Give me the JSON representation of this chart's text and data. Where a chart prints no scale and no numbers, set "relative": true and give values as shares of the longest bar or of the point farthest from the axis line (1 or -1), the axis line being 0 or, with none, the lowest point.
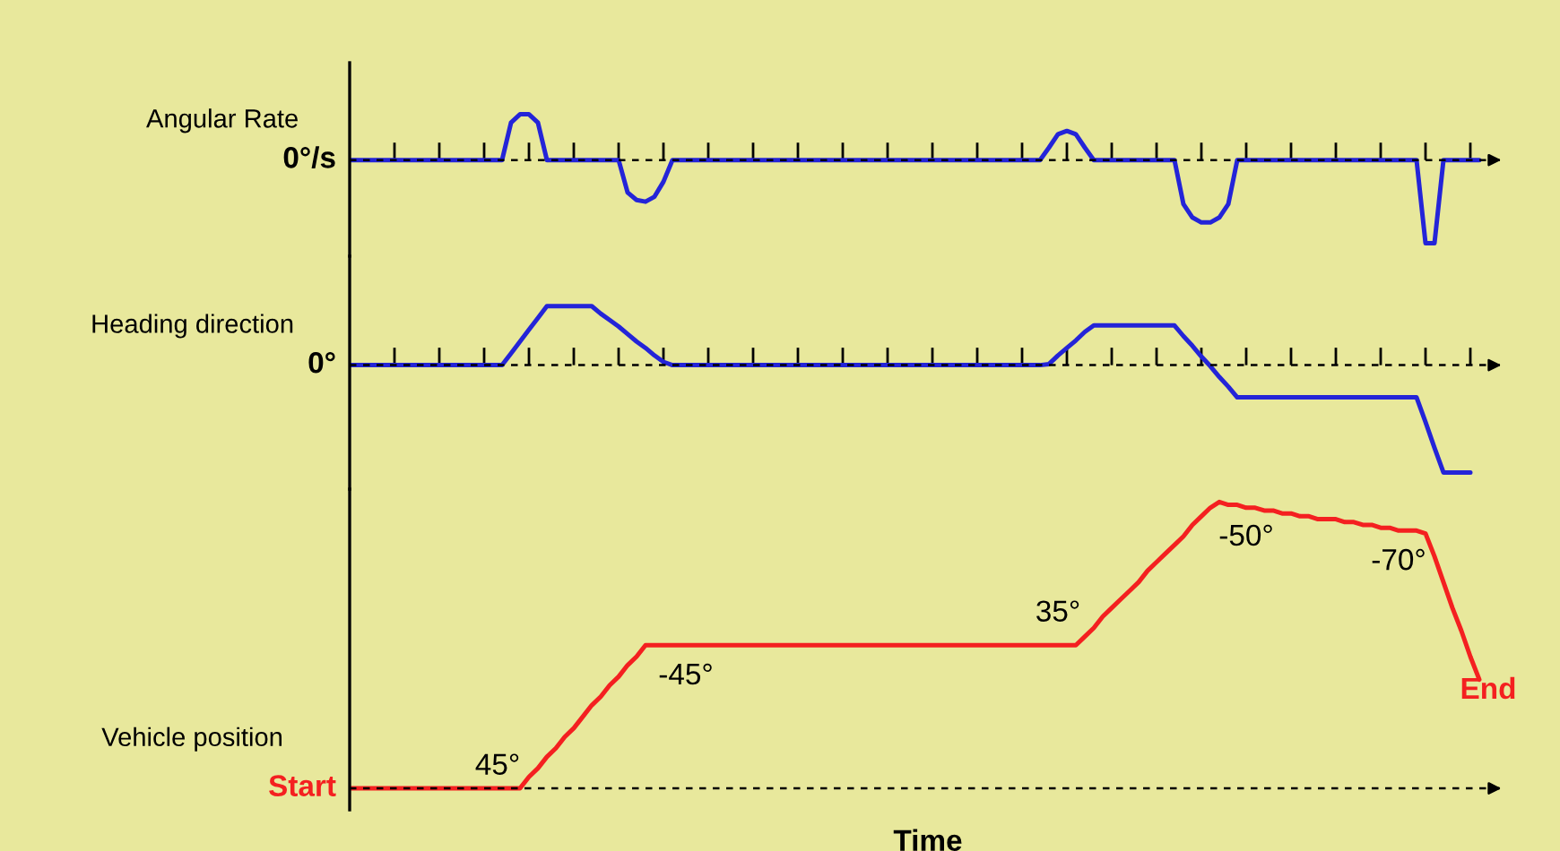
{
  "chart_data": [
    {
      "type": "line",
      "relative": true,
      "ylabel": "Angular Rate",
      "annotations": [
        "0°/s"
      ],
      "ref_lines": [
        {
          "axis": "y",
          "value": 0,
          "line_style": "dashed",
          "color": "#000000"
        }
      ],
      "categories": [
        null,
        null,
        null,
        null,
        null,
        null,
        null,
        null,
        null,
        null,
        null,
        null,
        null,
        null,
        null,
        null,
        null,
        null,
        null,
        null,
        null,
        null,
        null,
        null,
        null,
        null,
        null,
        null,
        null,
        null,
        null,
        null,
        null,
        null,
        null,
        null,
        null,
        null,
        null,
        null,
        null,
        null,
        null,
        null,
        null,
        null,
        null,
        null,
        null,
        null,
        null,
        null,
        null,
        null,
        null,
        null,
        null,
        null,
        null,
        null,
        null,
        null,
        null,
        null,
        null,
        null,
        null,
        null,
        null,
        null,
        null,
        null,
        null,
        null,
        null,
        null,
        null,
        null,
        null,
        null,
        null,
        null,
        null,
        null,
        null,
        null,
        null,
        null,
        null,
        null,
        null,
        null,
        null,
        null,
        null,
        null,
        null,
        null,
        null,
        null,
        null,
        null,
        null,
        null,
        null,
        null,
        null,
        null,
        null,
        null,
        null,
        null,
        null,
        null,
        null,
        null,
        null,
        null,
        null,
        null,
        null,
        null,
        null,
        null,
        null,
        null,
        null
      ],
      "series": [
        {
          "color": "#2424d8",
          "values": [
            0,
            0,
            0,
            0,
            0,
            0,
            0,
            0,
            0,
            0,
            0,
            0,
            0,
            0,
            0,
            0,
            0,
            0,
            0.45,
            0.55,
            0.55,
            0.45,
            0,
            0,
            0,
            0,
            0,
            0,
            0,
            0,
            0,
            -0.39,
            -0.48,
            -0.5,
            -0.44,
            -0.26,
            0,
            0,
            0,
            0,
            0,
            0,
            0,
            0,
            0,
            0,
            0,
            0,
            0,
            0,
            0,
            0,
            0,
            0,
            0,
            0,
            0,
            0,
            0,
            0,
            0,
            0,
            0,
            0,
            0,
            0,
            0,
            0,
            0,
            0,
            0,
            0,
            0,
            0,
            0,
            0,
            0,
            0,
            0.15,
            0.31,
            0.35,
            0.31,
            0.15,
            0,
            0,
            0,
            0,
            0,
            0,
            0,
            0,
            0,
            0,
            -0.53,
            -0.69,
            -0.75,
            -0.75,
            -0.69,
            -0.53,
            0,
            0,
            0,
            0,
            0,
            0,
            0,
            0,
            0,
            0,
            0,
            0,
            0,
            0,
            0,
            0,
            0,
            0,
            0,
            0,
            0,
            -1,
            -1,
            0,
            0,
            0,
            0,
            0
          ]
        }
      ]
    },
    {
      "type": "line",
      "relative": true,
      "ylabel": "Heading direction",
      "annotations": [
        "0°"
      ],
      "ref_lines": [
        {
          "axis": "y",
          "value": 0,
          "line_style": "dashed",
          "color": "#000000"
        }
      ],
      "categories": [
        null,
        null,
        null,
        null,
        null,
        null,
        null,
        null,
        null,
        null,
        null,
        null,
        null,
        null,
        null,
        null,
        null,
        null,
        null,
        null,
        null,
        null,
        null,
        null,
        null,
        null,
        null,
        null,
        null,
        null,
        null,
        null,
        null,
        null,
        null,
        null,
        null,
        null,
        null,
        null,
        null,
        null,
        null,
        null,
        null,
        null,
        null,
        null,
        null,
        null,
        null,
        null,
        null,
        null,
        null,
        null,
        null,
        null,
        null,
        null,
        null,
        null,
        null,
        null,
        null,
        null,
        null,
        null,
        null,
        null,
        null,
        null,
        null,
        null,
        null,
        null,
        null,
        null,
        null,
        null,
        null,
        null,
        null,
        null,
        null,
        null,
        null,
        null,
        null,
        null,
        null,
        null,
        null,
        null,
        null,
        null,
        null,
        null,
        null,
        null,
        null,
        null,
        null,
        null,
        null,
        null,
        null,
        null,
        null,
        null,
        null,
        null,
        null,
        null,
        null,
        null,
        null,
        null,
        null,
        null,
        null,
        null,
        null,
        null,
        null,
        null,
        null
      ],
      "series": [
        {
          "color": "#2424d8",
          "values": [
            0,
            0,
            0,
            0,
            0,
            0,
            0,
            0,
            0,
            0,
            0,
            0,
            0,
            0,
            0,
            0,
            0,
            0,
            0.11,
            0.22,
            0.33,
            0.44,
            0.55,
            0.55,
            0.55,
            0.55,
            0.55,
            0.55,
            0.48,
            0.42,
            0.36,
            0.29,
            0.22,
            0.16,
            0.09,
            0.03,
            0,
            0,
            0,
            0,
            0,
            0,
            0,
            0,
            0,
            0,
            0,
            0,
            0,
            0,
            0,
            0,
            0,
            0,
            0,
            0,
            0,
            0,
            0,
            0,
            0,
            0,
            0,
            0,
            0,
            0,
            0,
            0,
            0,
            0,
            0,
            0,
            0,
            0,
            0,
            0,
            0,
            0,
            0.01,
            0.09,
            0.16,
            0.23,
            0.31,
            0.37,
            0.37,
            0.37,
            0.37,
            0.37,
            0.37,
            0.37,
            0.37,
            0.37,
            0.37,
            0.27,
            0.18,
            0.08,
            -0.01,
            -0.11,
            -0.2,
            -0.3,
            -0.3,
            -0.3,
            -0.3,
            -0.3,
            -0.3,
            -0.3,
            -0.3,
            -0.3,
            -0.3,
            -0.3,
            -0.3,
            -0.3,
            -0.3,
            -0.3,
            -0.3,
            -0.3,
            -0.3,
            -0.3,
            -0.3,
            -0.3,
            -0.53,
            -0.77,
            -1,
            -1,
            -1,
            -1,
            null
          ]
        }
      ]
    },
    {
      "type": "line",
      "relative": true,
      "ylabel": "Vehicle position",
      "xlabel": "Time",
      "annotations": [
        "Start",
        "45°",
        "-45°",
        "35°",
        "-50°",
        "-70°",
        "End"
      ],
      "ref_lines": [
        {
          "axis": "y",
          "value": 0,
          "line_style": "dashed",
          "color": "#000000"
        }
      ],
      "categories": [
        null,
        null,
        null,
        null,
        null,
        null,
        null,
        null,
        null,
        null,
        null,
        null,
        null,
        null,
        null,
        null,
        null,
        null,
        null,
        null,
        null,
        null,
        null,
        null,
        null,
        null,
        null,
        null,
        null,
        null,
        null,
        null,
        null,
        null,
        null,
        null,
        null,
        null,
        null,
        null,
        null,
        null,
        null,
        null,
        null,
        null,
        null,
        null,
        null,
        null,
        null,
        null,
        null,
        null,
        null,
        null,
        null,
        null,
        null,
        null,
        null,
        null,
        null,
        null,
        null,
        null,
        null,
        null,
        null,
        null,
        null,
        null,
        null,
        null,
        null,
        null,
        null,
        null,
        null,
        null,
        null,
        null,
        null,
        null,
        null,
        null,
        null,
        null,
        null,
        null,
        null,
        null,
        null,
        null,
        null,
        null,
        null,
        null,
        null,
        null,
        null,
        null,
        null,
        null,
        null,
        null,
        null,
        null,
        null,
        null,
        null,
        null,
        null,
        null,
        null,
        null,
        null,
        null,
        null,
        null,
        null,
        null,
        null,
        null,
        null,
        null,
        null
      ],
      "series": [
        {
          "color": "#f42020",
          "values": [
            0,
            0,
            0,
            0,
            0,
            0,
            0,
            0,
            0,
            0,
            0,
            0,
            0,
            0,
            0,
            0,
            0,
            0,
            0,
            0,
            0.04,
            0.07,
            0.11,
            0.14,
            0.18,
            0.21,
            0.25,
            0.29,
            0.32,
            0.36,
            0.39,
            0.43,
            0.46,
            0.5,
            0.5,
            0.5,
            0.5,
            0.5,
            0.5,
            0.5,
            0.5,
            0.5,
            0.5,
            0.5,
            0.5,
            0.5,
            0.5,
            0.5,
            0.5,
            0.5,
            0.5,
            0.5,
            0.5,
            0.5,
            0.5,
            0.5,
            0.5,
            0.5,
            0.5,
            0.5,
            0.5,
            0.5,
            0.5,
            0.5,
            0.5,
            0.5,
            0.5,
            0.5,
            0.5,
            0.5,
            0.5,
            0.5,
            0.5,
            0.5,
            0.5,
            0.5,
            0.5,
            0.5,
            0.5,
            0.5,
            0.5,
            0.5,
            0.53,
            0.56,
            0.6,
            0.63,
            0.66,
            0.69,
            0.72,
            0.76,
            0.79,
            0.82,
            0.85,
            0.88,
            0.92,
            0.95,
            0.98,
            1,
            0.99,
            0.99,
            0.98,
            0.98,
            0.97,
            0.97,
            0.96,
            0.96,
            0.95,
            0.95,
            0.94,
            0.94,
            0.94,
            0.93,
            0.93,
            0.92,
            0.92,
            0.91,
            0.91,
            0.9,
            0.9,
            0.9,
            0.89,
            0.81,
            0.72,
            0.63,
            0.55,
            0.46,
            0.38
          ]
        }
      ]
    }
  ]
}
